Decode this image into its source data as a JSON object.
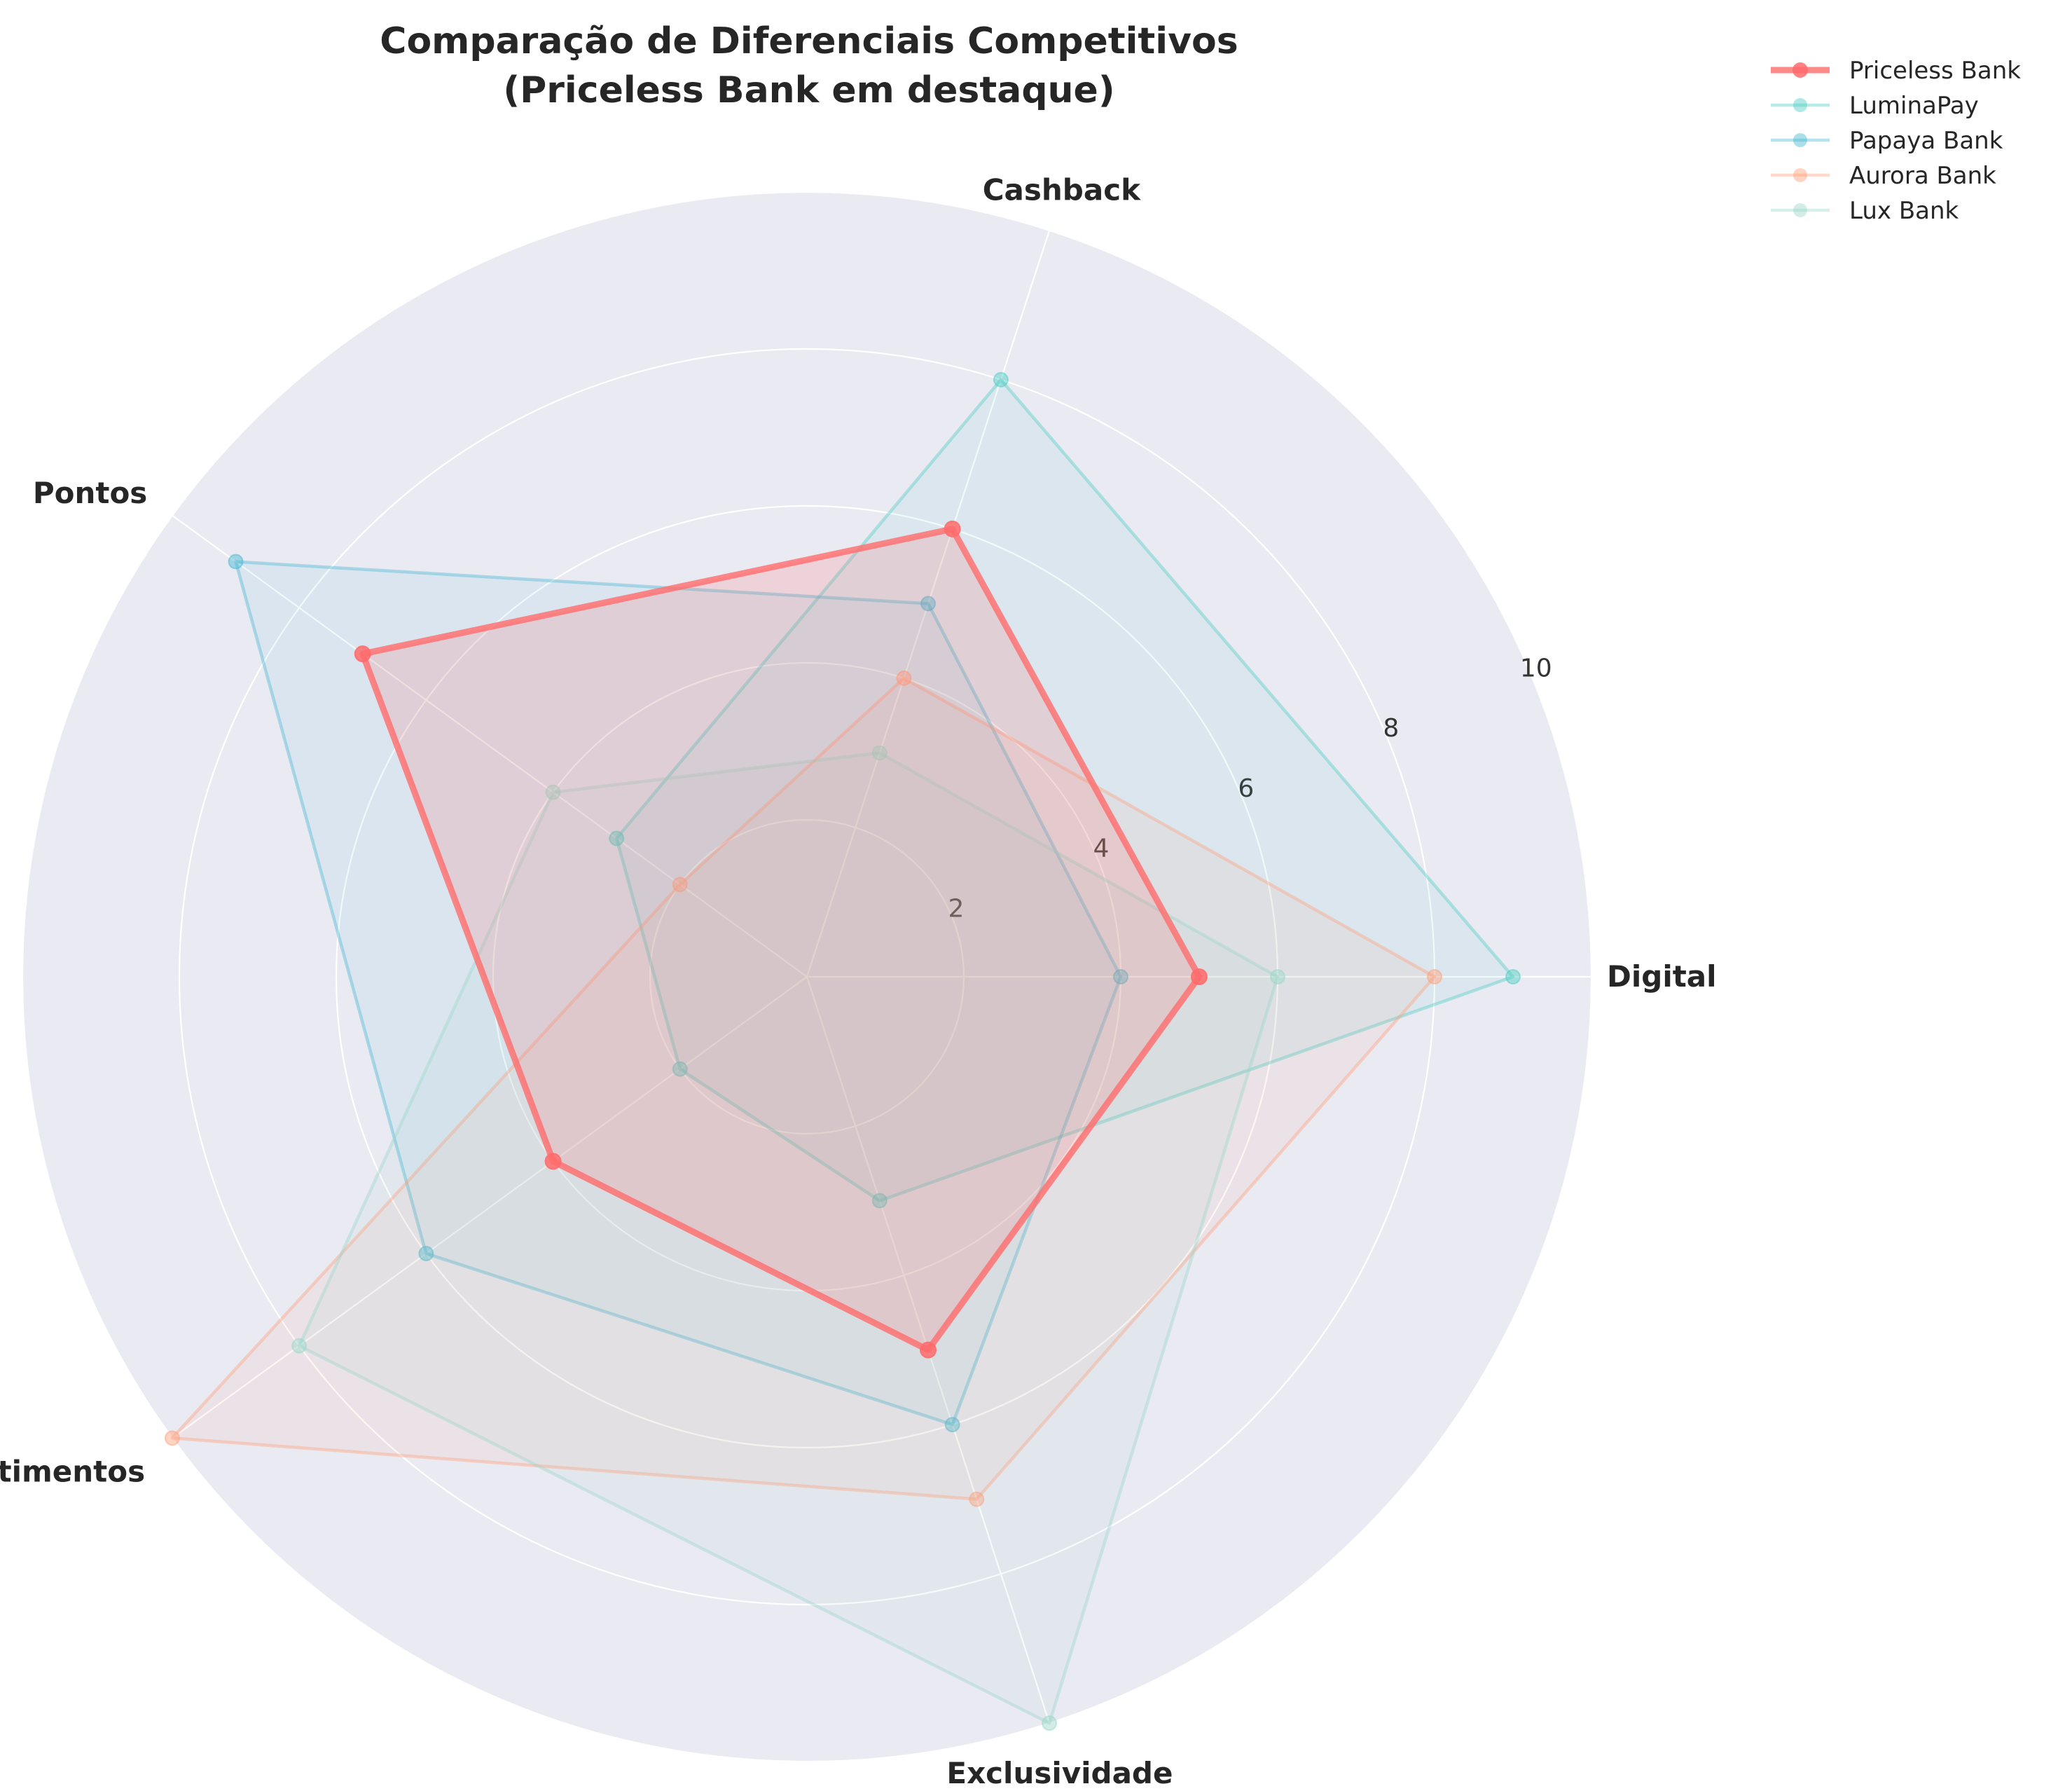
{
  "chart_data": {
    "type": "radar",
    "title": "Comparação de Diferenciais Competitivos",
    "subtitle": "(Priceless Bank em destaque)",
    "categories": [
      "Digital",
      "Cashback",
      "Pontos",
      "Investimentos",
      "Exclusividade"
    ],
    "rlim": [
      0,
      10
    ],
    "rticks": [
      2,
      4,
      6,
      8,
      10
    ],
    "grid": true,
    "legend_position": "top-right",
    "series": [
      {
        "name": "Priceless Bank",
        "values": [
          5,
          6,
          7,
          4,
          5
        ],
        "color": "#FF6B6B",
        "highlight": true
      },
      {
        "name": "LuminaPay",
        "values": [
          9,
          8,
          3,
          2,
          3
        ],
        "color": "#4ECDC4",
        "highlight": false
      },
      {
        "name": "Papaya Bank",
        "values": [
          4,
          5,
          9,
          6,
          6
        ],
        "color": "#45B7D1",
        "highlight": false
      },
      {
        "name": "Aurora Bank",
        "values": [
          8,
          4,
          2,
          10,
          7
        ],
        "color": "#FFA07A",
        "highlight": false
      },
      {
        "name": "Lux Bank",
        "values": [
          6,
          3,
          4,
          8,
          10
        ],
        "color": "#98D8C8",
        "highlight": false
      }
    ]
  }
}
